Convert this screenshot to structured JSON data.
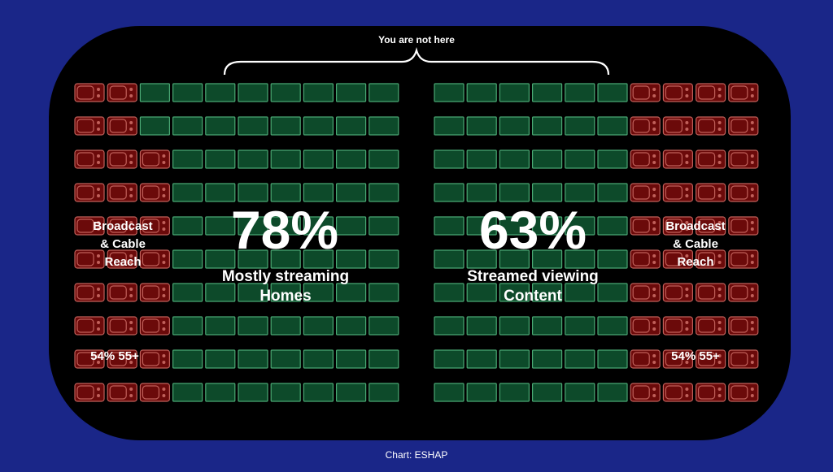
{
  "chart_data": {
    "type": "pictogram",
    "top_annotation": "You are not here",
    "colors": {
      "background": "#1a2688",
      "panel": "#000000",
      "tv": "#6b0a0a",
      "tv_border": "#c0605a",
      "stream": "#0d4a2a",
      "stream_border": "#4aa874"
    },
    "icons": {
      "tv": "tv-icon",
      "stream": "streaming-screen-icon"
    },
    "panels": [
      {
        "side": "left",
        "value_label": "78%",
        "value": 78,
        "subtitle_lines": [
          "Mostly streaming",
          "Homes"
        ],
        "side_label_lines": [
          "Broadcast",
          "& Cable",
          "Reach"
        ],
        "age_label": "54% 55+",
        "tv_per_row": [
          2,
          2,
          3,
          3,
          3,
          3,
          3,
          3,
          3,
          3
        ]
      },
      {
        "side": "right",
        "value_label": "63%",
        "value": 63,
        "subtitle_lines": [
          "Streamed viewing",
          "Content"
        ],
        "side_label_lines": [
          "Broadcast",
          "& Cable",
          "Reach"
        ],
        "age_label": "54% 55+",
        "tv_per_row": [
          4,
          4,
          4,
          4,
          4,
          4,
          4,
          4,
          4,
          4
        ]
      }
    ]
  },
  "footer": "Chart: ESHAP"
}
